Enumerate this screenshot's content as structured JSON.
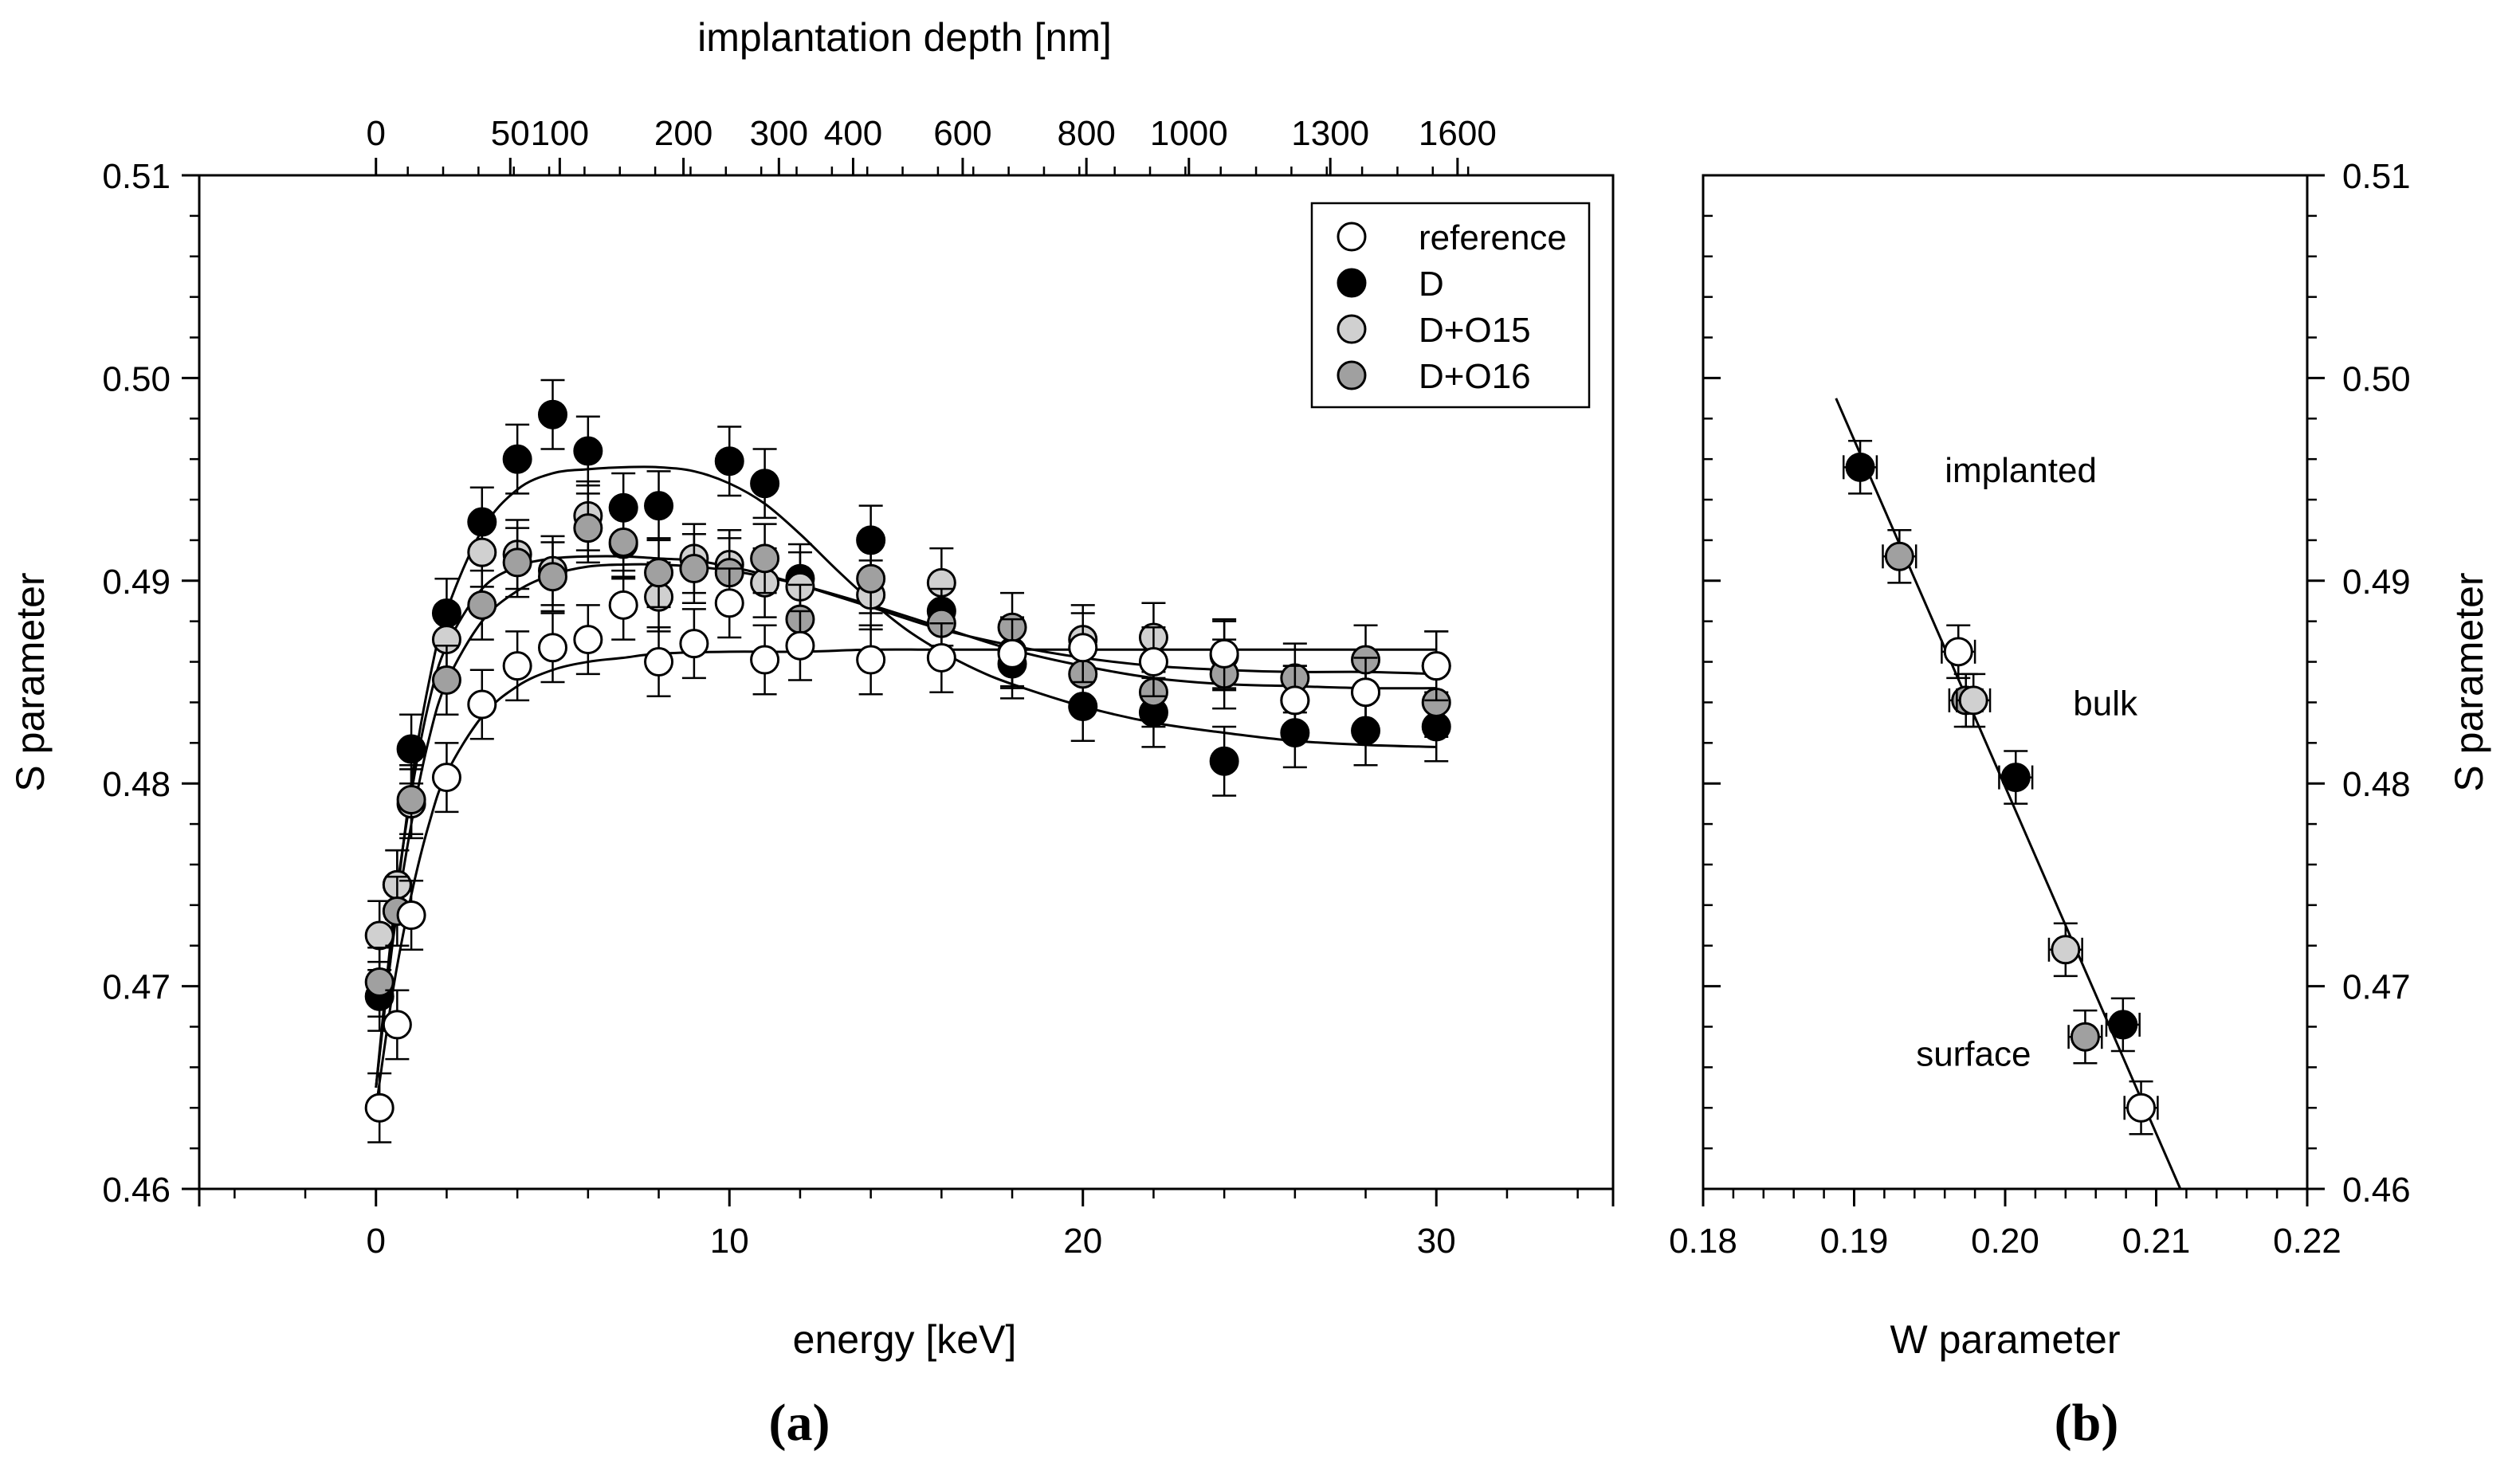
{
  "chart_data": [
    {
      "type": "scatter",
      "panel_label": "(a)",
      "xlabel": "energy [keV]",
      "ylabel": "S parameter",
      "top_xlabel": "implantation depth [nm]",
      "xlim": [
        -5,
        35
      ],
      "ylim": [
        0.46,
        0.51
      ],
      "x_ticks": [
        "0",
        "10",
        "20",
        "30"
      ],
      "y_ticks": [
        "0.46",
        "0.47",
        "0.48",
        "0.49",
        "0.50",
        "0.51"
      ],
      "top_ticks": [
        {
          "energy": 0,
          "label": "0"
        },
        {
          "energy": 3.8,
          "label": "50"
        },
        {
          "energy": 5.2,
          "label": "100"
        },
        {
          "energy": 8.7,
          "label": "200"
        },
        {
          "energy": 11.4,
          "label": "300"
        },
        {
          "energy": 13.5,
          "label": "400"
        },
        {
          "energy": 16.6,
          "label": "600"
        },
        {
          "energy": 20.1,
          "label": "800"
        },
        {
          "energy": 23.0,
          "label": "1000"
        },
        {
          "energy": 27.0,
          "label": "1300"
        },
        {
          "energy": 30.6,
          "label": "1600"
        }
      ],
      "legend": [
        "reference",
        "D",
        "D+O15",
        "D+O16"
      ],
      "legend_position": "top-right",
      "series": [
        {
          "name": "D",
          "fill": "#000000",
          "x": [
            0.1,
            0.6,
            1.0,
            2.0,
            3.0,
            4.0,
            5.0,
            6.0,
            7.0,
            8.0,
            10.0,
            11.0,
            12.0,
            14.0,
            16.0,
            18.0,
            20.0,
            22.0,
            24.0,
            26.0,
            28.0,
            30.0
          ],
          "y": [
            0.4695,
            0.475,
            0.4817,
            0.4884,
            0.4929,
            0.496,
            0.4982,
            0.4964,
            0.4936,
            0.4937,
            0.4959,
            0.4948,
            0.4901,
            0.492,
            0.4885,
            0.4859,
            0.4838,
            0.4835,
            0.4811,
            0.4825,
            0.4826,
            0.4828
          ],
          "err": 0.0017
        },
        {
          "name": "D+O15",
          "fill": "#d0d0d0",
          "x": [
            0.1,
            0.6,
            1.0,
            2.0,
            3.0,
            4.0,
            5.0,
            6.0,
            7.0,
            8.0,
            9.0,
            10.0,
            11.0,
            12.0,
            14.0,
            16.0,
            18.0,
            20.0,
            22.0,
            24.0,
            26.0,
            28.0,
            30.0
          ],
          "y": [
            0.4725,
            0.475,
            0.479,
            0.4871,
            0.4914,
            0.4913,
            0.4905,
            0.4932,
            0.4918,
            0.4892,
            0.4911,
            0.4908,
            0.4899,
            0.4897,
            0.4893,
            0.4899,
            0.4865,
            0.4871,
            0.4872,
            0.4863,
            0.4841,
            0.4845,
            0.4858
          ],
          "err": 0.0017
        },
        {
          "name": "D+O16",
          "fill": "#a0a0a0",
          "x": [
            0.1,
            0.6,
            1.0,
            2.0,
            3.0,
            4.0,
            5.0,
            6.0,
            7.0,
            8.0,
            9.0,
            10.0,
            11.0,
            12.0,
            14.0,
            16.0,
            18.0,
            20.0,
            22.0,
            24.0,
            26.0,
            28.0,
            30.0
          ],
          "y": [
            0.4702,
            0.4737,
            0.4792,
            0.4851,
            0.4888,
            0.4909,
            0.4902,
            0.4926,
            0.4919,
            0.4904,
            0.4906,
            0.4904,
            0.4911,
            0.4881,
            0.4901,
            0.4879,
            0.4877,
            0.4854,
            0.4845,
            0.4854,
            0.4852,
            0.4861,
            0.484
          ],
          "err": 0.0017
        },
        {
          "name": "reference",
          "fill": "#ffffff",
          "x": [
            0.1,
            0.6,
            1.0,
            2.0,
            3.0,
            4.0,
            5.0,
            6.0,
            7.0,
            8.0,
            9.0,
            10.0,
            11.0,
            12.0,
            14.0,
            16.0,
            18.0,
            20.0,
            22.0,
            24.0,
            26.0,
            28.0,
            30.0
          ],
          "y": [
            0.464,
            0.4681,
            0.4735,
            0.4803,
            0.4839,
            0.4858,
            0.4867,
            0.4871,
            0.4888,
            0.486,
            0.4869,
            0.4889,
            0.4861,
            0.4868,
            0.4861,
            0.4862,
            0.4864,
            0.4867,
            0.486,
            0.4864,
            0.4841,
            0.4845,
            0.4858
          ],
          "err": 0.0017
        }
      ],
      "fit_curves": [
        {
          "series": "D",
          "x": [
            0,
            0.5,
            1,
            1.5,
            2,
            3,
            4,
            5,
            6,
            7,
            8,
            9,
            10,
            11,
            12,
            13,
            14,
            15,
            16,
            17,
            18,
            20,
            22,
            24,
            26,
            28,
            30
          ],
          "y": [
            0.465,
            0.473,
            0.48,
            0.485,
            0.4885,
            0.4925,
            0.4945,
            0.4953,
            0.4955,
            0.4956,
            0.4956,
            0.4954,
            0.4948,
            0.4938,
            0.4923,
            0.4906,
            0.489,
            0.4876,
            0.4865,
            0.4856,
            0.4849,
            0.4838,
            0.483,
            0.4825,
            0.4821,
            0.4819,
            0.4818
          ]
        },
        {
          "series": "D+O15",
          "x": [
            0,
            0.5,
            1,
            1.5,
            2,
            3,
            4,
            5,
            6,
            7,
            8,
            9,
            10,
            11,
            12,
            14,
            16,
            18,
            20,
            22,
            24,
            26,
            28,
            30
          ],
          "y": [
            0.465,
            0.4735,
            0.4795,
            0.484,
            0.4868,
            0.4896,
            0.4907,
            0.4911,
            0.4912,
            0.4912,
            0.4911,
            0.491,
            0.4907,
            0.4903,
            0.4898,
            0.4887,
            0.4876,
            0.4868,
            0.4862,
            0.4858,
            0.4856,
            0.4855,
            0.4855,
            0.4854
          ]
        },
        {
          "series": "D+O16",
          "x": [
            0,
            0.5,
            1,
            1.5,
            2,
            3,
            4,
            5,
            6,
            7,
            8,
            9,
            10,
            11,
            12,
            14,
            16,
            18,
            20,
            22,
            24,
            26,
            28,
            30
          ],
          "y": [
            0.465,
            0.4725,
            0.478,
            0.4822,
            0.485,
            0.488,
            0.4895,
            0.4903,
            0.4907,
            0.4908,
            0.4908,
            0.4907,
            0.4905,
            0.4902,
            0.4898,
            0.4888,
            0.4877,
            0.4866,
            0.4858,
            0.4852,
            0.4849,
            0.4848,
            0.4847,
            0.4847
          ]
        },
        {
          "series": "reference",
          "x": [
            0,
            0.5,
            1,
            1.5,
            2,
            3,
            4,
            5,
            6,
            7,
            8,
            10,
            12,
            14,
            16,
            18,
            20,
            22,
            24,
            26,
            28,
            30
          ],
          "y": [
            0.464,
            0.47,
            0.4745,
            0.478,
            0.4805,
            0.4833,
            0.4848,
            0.4856,
            0.486,
            0.4862,
            0.4864,
            0.4865,
            0.4865,
            0.4866,
            0.4866,
            0.4866,
            0.4866,
            0.4866,
            0.4866,
            0.4866,
            0.4866,
            0.4866
          ]
        }
      ]
    },
    {
      "type": "scatter",
      "panel_label": "(b)",
      "xlabel": "W parameter",
      "ylabel": "S parameter",
      "xlim": [
        0.18,
        0.22
      ],
      "ylim": [
        0.46,
        0.51
      ],
      "x_ticks": [
        "0.18",
        "0.19",
        "0.20",
        "0.21",
        "0.22"
      ],
      "y_ticks": [
        "0.46",
        "0.47",
        "0.48",
        "0.49",
        "0.50",
        "0.51"
      ],
      "annotations": [
        {
          "text": "implanted",
          "x": 0.196,
          "y": 0.4955
        },
        {
          "text": "bulk",
          "x": 0.2045,
          "y": 0.484
        },
        {
          "text": "surface",
          "x": 0.1941,
          "y": 0.4667
        }
      ],
      "points": [
        {
          "series": "D",
          "fill": "#000000",
          "w": 0.1904,
          "s": 0.4956
        },
        {
          "series": "D+O16",
          "fill": "#a0a0a0",
          "w": 0.193,
          "s": 0.4912
        },
        {
          "series": "reference",
          "fill": "#ffffff",
          "w": 0.1969,
          "s": 0.4865
        },
        {
          "series": "D+O16",
          "fill": "#a0a0a0",
          "w": 0.1974,
          "s": 0.4841
        },
        {
          "series": "D+O15",
          "fill": "#d0d0d0",
          "w": 0.1979,
          "s": 0.4841
        },
        {
          "series": "D",
          "fill": "#000000",
          "w": 0.2007,
          "s": 0.4803
        },
        {
          "series": "D+O15",
          "fill": "#d0d0d0",
          "w": 0.204,
          "s": 0.4718
        },
        {
          "series": "D",
          "fill": "#000000",
          "w": 0.2078,
          "s": 0.4681
        },
        {
          "series": "D+O16",
          "fill": "#a0a0a0",
          "w": 0.2053,
          "s": 0.4675
        },
        {
          "series": "reference",
          "fill": "#ffffff",
          "w": 0.209,
          "s": 0.464
        }
      ],
      "xerr": 0.0011,
      "yerr": 0.0013,
      "fit_line": {
        "w": [
          0.1888,
          0.2116
        ],
        "s": [
          0.499,
          0.46
        ]
      }
    }
  ]
}
